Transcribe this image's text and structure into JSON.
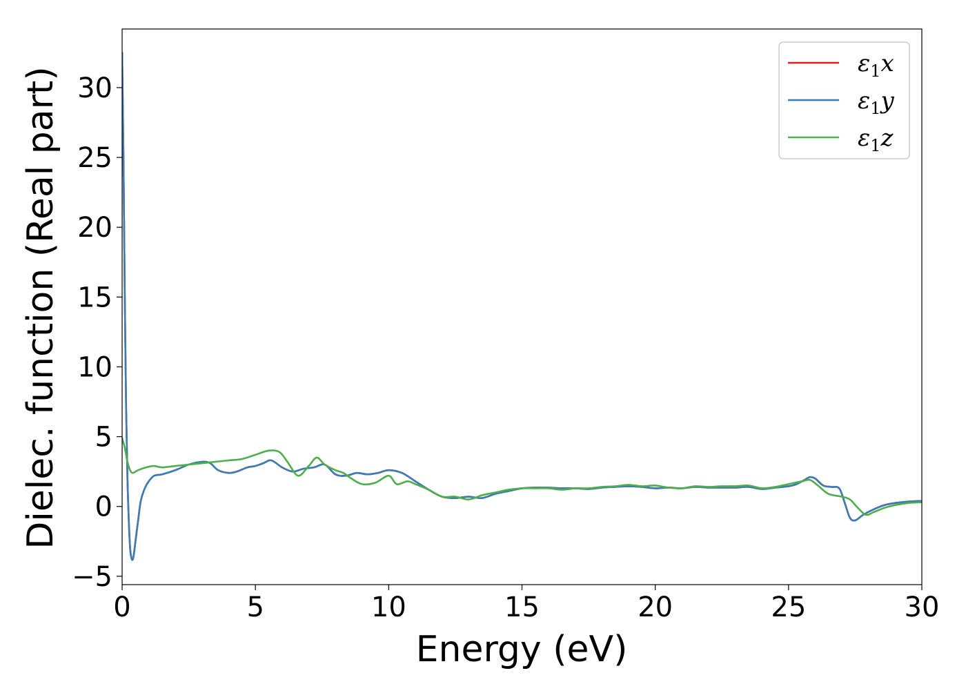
{
  "chart_data": {
    "type": "line",
    "title": "",
    "xlabel": "Energy (eV)",
    "ylabel": "Dielec. function (Real part)",
    "xlim": [
      0,
      30
    ],
    "ylim": [
      -5.6,
      34.2
    ],
    "xticks": [
      {
        "value": 0,
        "label": "0"
      },
      {
        "value": 5,
        "label": "5"
      },
      {
        "value": 10,
        "label": "10"
      },
      {
        "value": 15,
        "label": "15"
      },
      {
        "value": 20,
        "label": "20"
      },
      {
        "value": 25,
        "label": "25"
      },
      {
        "value": 30,
        "label": "30"
      }
    ],
    "yticks": [
      {
        "value": -5,
        "label": "−5"
      },
      {
        "value": 0,
        "label": "0"
      },
      {
        "value": 5,
        "label": "5"
      },
      {
        "value": 10,
        "label": "10"
      },
      {
        "value": 15,
        "label": "15"
      },
      {
        "value": 20,
        "label": "20"
      },
      {
        "value": 25,
        "label": "25"
      },
      {
        "value": 30,
        "label": "30"
      }
    ],
    "grid": false,
    "legend_position": "top-right",
    "series": [
      {
        "name": "x",
        "color": "#e41a1c",
        "x": [
          0,
          0.05,
          0.1,
          0.15,
          0.2,
          0.25,
          0.3,
          0.35,
          0.4,
          0.45,
          0.5,
          0.6,
          0.7,
          0.85,
          1.0,
          1.2,
          1.5,
          2.0,
          2.5,
          3.0,
          3.3,
          3.6,
          4.0,
          4.3,
          4.7,
          5.0,
          5.3,
          5.6,
          6.0,
          6.4,
          6.8,
          7.2,
          7.6,
          8.0,
          8.4,
          8.8,
          9.2,
          9.6,
          10.0,
          10.5,
          11.0,
          11.5,
          12.0,
          12.5,
          13.0,
          13.5,
          14.0,
          14.5,
          15.0,
          15.5,
          16.0,
          16.5,
          17.0,
          17.5,
          18.0,
          18.5,
          19.0,
          19.5,
          20.0,
          20.5,
          21.0,
          21.5,
          22.0,
          22.5,
          23.0,
          23.5,
          24.0,
          24.5,
          25.0,
          25.3,
          25.6,
          25.8,
          26.0,
          26.3,
          26.6,
          26.9,
          27.1,
          27.3,
          27.5,
          27.8,
          28.2,
          28.6,
          29.0,
          29.5,
          30.0
        ],
        "y": [
          32.5,
          25.0,
          15.0,
          7.0,
          2.0,
          -1.0,
          -3.0,
          -3.7,
          -3.8,
          -3.3,
          -2.5,
          -1.0,
          0.4,
          1.3,
          1.8,
          2.2,
          2.3,
          2.6,
          3.0,
          3.2,
          3.1,
          2.6,
          2.4,
          2.5,
          2.8,
          2.9,
          3.1,
          3.3,
          2.8,
          2.5,
          2.7,
          2.8,
          3.0,
          2.3,
          2.2,
          2.4,
          2.3,
          2.4,
          2.6,
          2.4,
          1.8,
          1.2,
          0.7,
          0.6,
          0.7,
          0.6,
          0.9,
          1.1,
          1.3,
          1.35,
          1.35,
          1.3,
          1.3,
          1.25,
          1.35,
          1.4,
          1.45,
          1.4,
          1.3,
          1.35,
          1.3,
          1.4,
          1.35,
          1.35,
          1.35,
          1.4,
          1.25,
          1.35,
          1.45,
          1.6,
          1.9,
          2.1,
          2.0,
          1.5,
          1.4,
          1.3,
          0.3,
          -0.8,
          -1.0,
          -0.6,
          -0.2,
          0.1,
          0.25,
          0.35,
          0.4
        ]
      },
      {
        "name": "y",
        "color": "#377eb8",
        "x": [
          0,
          0.05,
          0.1,
          0.15,
          0.2,
          0.25,
          0.3,
          0.35,
          0.4,
          0.45,
          0.5,
          0.6,
          0.7,
          0.85,
          1.0,
          1.2,
          1.5,
          2.0,
          2.5,
          3.0,
          3.3,
          3.6,
          4.0,
          4.3,
          4.7,
          5.0,
          5.3,
          5.6,
          6.0,
          6.4,
          6.8,
          7.2,
          7.6,
          8.0,
          8.4,
          8.8,
          9.2,
          9.6,
          10.0,
          10.5,
          11.0,
          11.5,
          12.0,
          12.5,
          13.0,
          13.5,
          14.0,
          14.5,
          15.0,
          15.5,
          16.0,
          16.5,
          17.0,
          17.5,
          18.0,
          18.5,
          19.0,
          19.5,
          20.0,
          20.5,
          21.0,
          21.5,
          22.0,
          22.5,
          23.0,
          23.5,
          24.0,
          24.5,
          25.0,
          25.3,
          25.6,
          25.8,
          26.0,
          26.3,
          26.6,
          26.9,
          27.1,
          27.3,
          27.5,
          27.8,
          28.2,
          28.6,
          29.0,
          29.5,
          30.0
        ],
        "y": [
          32.5,
          25.0,
          15.0,
          7.0,
          2.0,
          -1.0,
          -3.0,
          -3.7,
          -3.8,
          -3.3,
          -2.5,
          -1.0,
          0.4,
          1.3,
          1.8,
          2.2,
          2.3,
          2.6,
          3.0,
          3.2,
          3.1,
          2.6,
          2.4,
          2.5,
          2.8,
          2.9,
          3.1,
          3.3,
          2.8,
          2.5,
          2.7,
          2.8,
          3.0,
          2.3,
          2.2,
          2.4,
          2.3,
          2.4,
          2.6,
          2.4,
          1.8,
          1.2,
          0.7,
          0.6,
          0.7,
          0.6,
          0.9,
          1.1,
          1.3,
          1.35,
          1.35,
          1.3,
          1.3,
          1.25,
          1.35,
          1.4,
          1.45,
          1.4,
          1.3,
          1.35,
          1.3,
          1.4,
          1.35,
          1.35,
          1.35,
          1.4,
          1.25,
          1.35,
          1.45,
          1.6,
          1.9,
          2.1,
          2.0,
          1.5,
          1.4,
          1.3,
          0.3,
          -0.8,
          -1.0,
          -0.6,
          -0.2,
          0.1,
          0.25,
          0.35,
          0.4
        ]
      },
      {
        "name": "z",
        "color": "#4daf4a",
        "x": [
          0,
          0.1,
          0.2,
          0.3,
          0.4,
          0.6,
          0.9,
          1.2,
          1.5,
          2.0,
          2.5,
          3.0,
          3.5,
          4.0,
          4.5,
          5.0,
          5.5,
          5.9,
          6.2,
          6.6,
          7.0,
          7.3,
          7.6,
          8.0,
          8.3,
          8.6,
          9.0,
          9.5,
          10.0,
          10.3,
          10.7,
          11.0,
          11.5,
          12.0,
          12.5,
          13.0,
          13.5,
          14.0,
          14.5,
          15.0,
          15.5,
          16.0,
          16.5,
          17.0,
          17.5,
          18.0,
          18.5,
          19.0,
          19.5,
          20.0,
          20.5,
          21.0,
          21.5,
          22.0,
          22.5,
          23.0,
          23.5,
          24.0,
          24.5,
          25.0,
          25.5,
          25.8,
          26.1,
          26.5,
          27.0,
          27.3,
          27.6,
          27.9,
          28.2,
          28.6,
          29.0,
          29.5,
          30.0
        ],
        "y": [
          4.9,
          4.2,
          3.2,
          2.6,
          2.4,
          2.6,
          2.8,
          2.9,
          2.8,
          2.9,
          3.0,
          3.1,
          3.2,
          3.3,
          3.4,
          3.7,
          4.0,
          3.9,
          3.2,
          2.2,
          2.9,
          3.5,
          3.0,
          2.6,
          2.4,
          2.0,
          1.6,
          1.7,
          2.2,
          1.6,
          1.8,
          1.6,
          1.2,
          0.7,
          0.7,
          0.5,
          0.8,
          1.0,
          1.2,
          1.3,
          1.3,
          1.3,
          1.2,
          1.3,
          1.3,
          1.4,
          1.45,
          1.55,
          1.45,
          1.5,
          1.35,
          1.3,
          1.45,
          1.4,
          1.45,
          1.45,
          1.5,
          1.3,
          1.4,
          1.6,
          1.8,
          1.9,
          1.5,
          0.9,
          0.7,
          0.5,
          -0.1,
          -0.6,
          -0.4,
          -0.1,
          0.1,
          0.25,
          0.3
        ]
      }
    ],
    "legend": [
      {
        "symbol": "ε",
        "subscript": "1",
        "suffix": "x",
        "color": "#e41a1c"
      },
      {
        "symbol": "ε",
        "subscript": "1",
        "suffix": "y",
        "color": "#377eb8"
      },
      {
        "symbol": "ε",
        "subscript": "1",
        "suffix": "z",
        "color": "#4daf4a"
      }
    ]
  }
}
